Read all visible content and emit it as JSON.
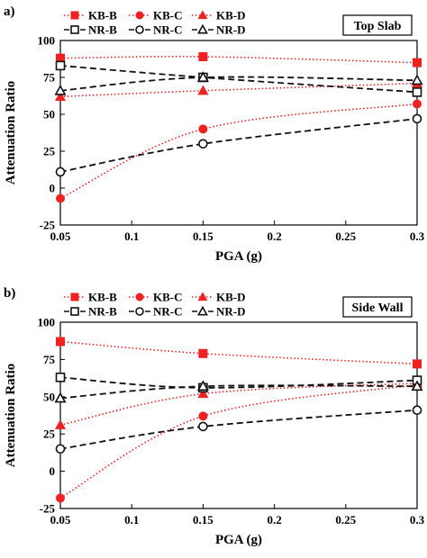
{
  "chart_data": [
    {
      "type": "line",
      "panel_label": "a)",
      "box_label": "Top Slab",
      "xlabel": "PGA (g)",
      "ylabel": "Attenuation Ratio",
      "xlim": [
        0.05,
        0.3
      ],
      "ylim": [
        -25,
        100
      ],
      "x_ticks": [
        "0.05",
        "0.1",
        "0.15",
        "0.2",
        "0.25",
        "0.3"
      ],
      "y_ticks": [
        "-25",
        "0",
        "25",
        "50",
        "75",
        "100"
      ],
      "x": [
        0.05,
        0.15,
        0.3
      ],
      "series": [
        {
          "name": "KB-B",
          "values": [
            88,
            89,
            85
          ],
          "color": "#ee2222",
          "marker": "square",
          "filled": true,
          "dash": "dotted"
        },
        {
          "name": "KB-C",
          "values": [
            -7,
            40,
            57
          ],
          "color": "#ee2222",
          "marker": "circle",
          "filled": true,
          "dash": "dotted"
        },
        {
          "name": "KB-D",
          "values": [
            62,
            66,
            71
          ],
          "color": "#ee2222",
          "marker": "triangle",
          "filled": true,
          "dash": "dotted"
        },
        {
          "name": "NR-B",
          "values": [
            83,
            75,
            65
          ],
          "color": "#111111",
          "marker": "square",
          "filled": false,
          "dash": "dashed"
        },
        {
          "name": "NR-C",
          "values": [
            11,
            30,
            47
          ],
          "color": "#111111",
          "marker": "circle",
          "filled": false,
          "dash": "dashed"
        },
        {
          "name": "NR-D",
          "values": [
            66,
            75,
            73
          ],
          "color": "#111111",
          "marker": "triangle",
          "filled": false,
          "dash": "dashed"
        }
      ]
    },
    {
      "type": "line",
      "panel_label": "b)",
      "box_label": "Side Wall",
      "xlabel": "PGA (g)",
      "ylabel": "Attenuation Ratio",
      "xlim": [
        0.05,
        0.3
      ],
      "ylim": [
        -25,
        100
      ],
      "x_ticks": [
        "0.05",
        "0.1",
        "0.15",
        "0.2",
        "0.25",
        "0.3"
      ],
      "y_ticks": [
        "-25",
        "0",
        "25",
        "50",
        "75",
        "100"
      ],
      "x": [
        0.05,
        0.15,
        0.3
      ],
      "series": [
        {
          "name": "KB-B",
          "values": [
            87,
            79,
            72
          ],
          "color": "#ee2222",
          "marker": "square",
          "filled": true,
          "dash": "dotted"
        },
        {
          "name": "KB-C",
          "values": [
            -18,
            37,
            58
          ],
          "color": "#ee2222",
          "marker": "circle",
          "filled": true,
          "dash": "dotted"
        },
        {
          "name": "KB-D",
          "values": [
            31,
            52,
            59
          ],
          "color": "#ee2222",
          "marker": "triangle",
          "filled": true,
          "dash": "dotted"
        },
        {
          "name": "NR-B",
          "values": [
            63,
            56,
            61
          ],
          "color": "#111111",
          "marker": "square",
          "filled": false,
          "dash": "dashed"
        },
        {
          "name": "NR-C",
          "values": [
            15,
            30,
            41
          ],
          "color": "#111111",
          "marker": "circle",
          "filled": false,
          "dash": "dashed"
        },
        {
          "name": "NR-D",
          "values": [
            49,
            57,
            57
          ],
          "color": "#111111",
          "marker": "triangle",
          "filled": false,
          "dash": "dashed"
        }
      ]
    }
  ]
}
